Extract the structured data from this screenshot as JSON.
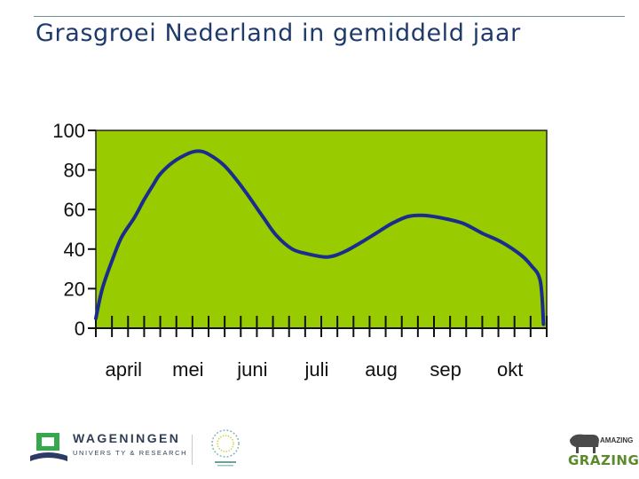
{
  "slide": {
    "title": "Grasgroei Nederland in gemiddeld jaar"
  },
  "chart_data": {
    "type": "area",
    "title": "",
    "xlabel": "",
    "ylabel": "",
    "ylim": [
      0,
      100
    ],
    "xlim": [
      0,
      7
    ],
    "grid": false,
    "background_color": "#99cc00",
    "line_color": "#1a2d8f",
    "y_ticks": [
      0,
      20,
      40,
      60,
      80,
      100
    ],
    "x_tick_labels": [
      "april",
      "mei",
      "juni",
      "juli",
      "aug",
      "sep",
      "okt"
    ],
    "series": [
      {
        "x": [
          0.0,
          0.1,
          0.25,
          0.4,
          0.6,
          0.75,
          0.9,
          1.0,
          1.2,
          1.45,
          1.6,
          1.75,
          2.0,
          2.3,
          2.6,
          2.8,
          3.05,
          3.3,
          3.6,
          3.85,
          4.1,
          4.35,
          4.6,
          4.85,
          5.1,
          5.4,
          5.7,
          6.0,
          6.3,
          6.6,
          6.75,
          6.9,
          6.95
        ],
        "y": [
          5,
          20,
          34,
          46,
          56,
          65,
          73,
          78,
          84,
          88.5,
          89.5,
          88,
          82,
          70,
          56,
          47,
          40,
          37.5,
          36,
          38.5,
          43,
          48,
          53,
          56.5,
          57,
          55.5,
          53,
          48,
          43.5,
          37,
          32,
          24,
          2
        ]
      }
    ]
  },
  "footer": {
    "wur_name": "WAGENINGEN",
    "wur_sub": "UNIVERS TY & RESEARCH",
    "brand_top": "AMAZING",
    "brand_main": "GRAZING"
  }
}
